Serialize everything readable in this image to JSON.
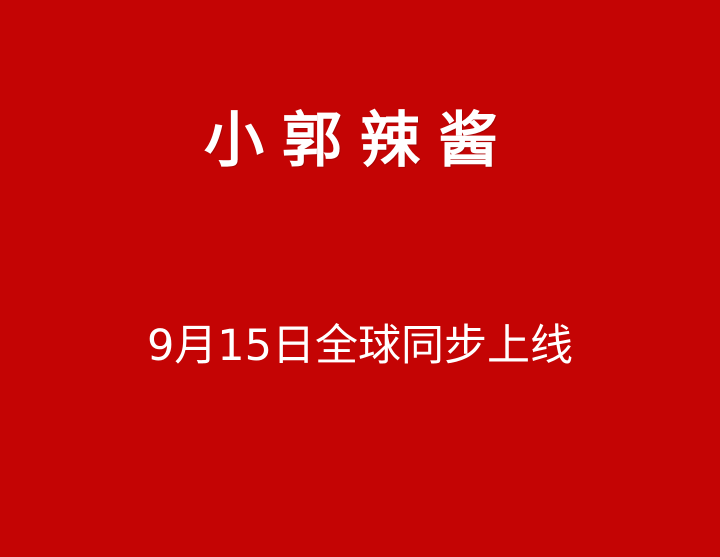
{
  "background_color": "#c40404",
  "text_color": "#ffffff",
  "title": "小郭辣酱",
  "subtitle": "9月15日全球同步上线"
}
